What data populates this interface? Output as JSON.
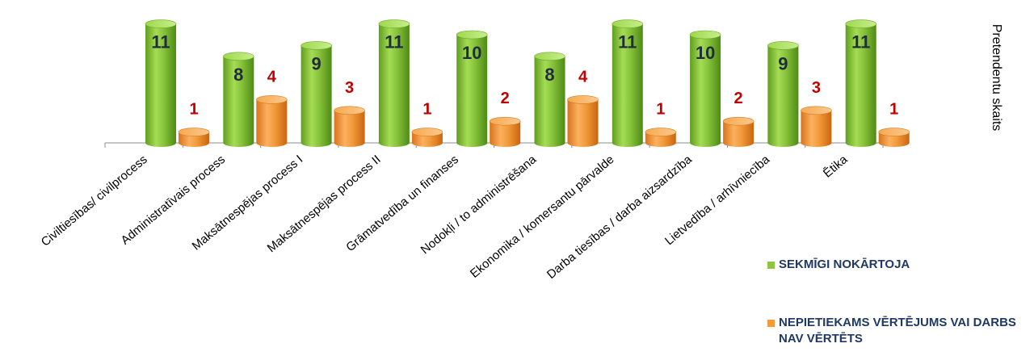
{
  "chart_data": {
    "type": "bar",
    "categories": [
      "Civiltiesības/ civilprocess",
      "Administratīvais process",
      "Maksātnespējas process I",
      "Maksātnespējas process II",
      "Grāmatvedība un finanses",
      "Nodokļi / to administrēšana",
      "Ekonomika / komersantu pārvalde",
      "Darba tiesības / darba aizsardzība",
      "Lietvedība / arhīvniecība",
      "Ētika"
    ],
    "series": [
      {
        "name": "SEKMĪGI NOKĀRTOJA",
        "color": "#8cc63f",
        "values": [
          11,
          8,
          9,
          11,
          10,
          8,
          11,
          10,
          9,
          11
        ]
      },
      {
        "name": "NEPIETIEKAMS VĒRTĒJUMS VAI DARBS NAV VĒRTĒTS",
        "color": "#f39a3c",
        "values": [
          1,
          4,
          3,
          1,
          2,
          4,
          1,
          2,
          3,
          1
        ]
      }
    ],
    "ylabel": "Pretendentu skaits",
    "ylim": [
      0,
      12
    ],
    "grid": false,
    "legend_position": "bottom-right"
  },
  "legend": {
    "items": [
      {
        "label": "SEKMĪGI NOKĀRTOJA",
        "color": "#8cc63f"
      },
      {
        "label": "NEPIETIEKAMS VĒRTĒJUMS VAI DARBS NAV VĒRTĒTS",
        "color": "#f39a3c"
      }
    ]
  }
}
